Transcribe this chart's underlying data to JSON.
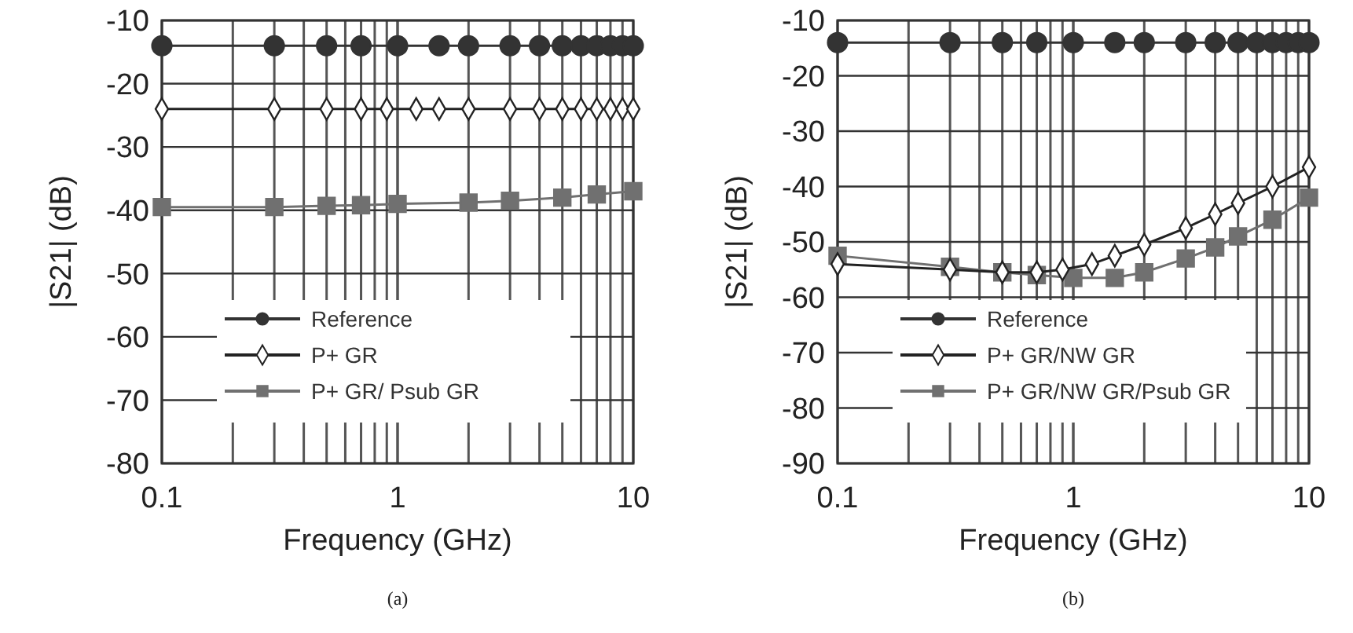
{
  "chart_data": [
    {
      "type": "line",
      "xlabel": "Frequency (GHz)",
      "ylabel": "|S21| (dB)",
      "log": "x",
      "xlim": [
        0.1,
        10
      ],
      "xticks": [
        0.1,
        1,
        10
      ],
      "ylim": [
        -80,
        -10
      ],
      "yticks": [
        -80,
        -70,
        -60,
        -50,
        -40,
        -30,
        -20,
        -10
      ],
      "grid": true,
      "legend": "bottom left",
      "annotations": [
        "(a)"
      ],
      "series": [
        {
          "name": "Reference",
          "color": "#333333",
          "marker": "circle",
          "x": [
            0.1,
            0.3,
            0.5,
            0.7,
            1,
            1.5,
            2,
            3,
            4,
            5,
            6,
            7,
            8,
            9,
            10
          ],
          "values": [
            -14,
            -14,
            -14,
            -14,
            -14,
            -14,
            -14,
            -14,
            -14,
            -14,
            -14,
            -14,
            -14,
            -14,
            -14
          ]
        },
        {
          "name": "P+ GR",
          "color": "#222222",
          "marker": "diamond",
          "x": [
            0.1,
            0.3,
            0.5,
            0.7,
            0.9,
            1.2,
            1.5,
            2,
            3,
            4,
            5,
            6,
            7,
            8,
            9,
            10
          ],
          "values": [
            -24,
            -24,
            -24,
            -24,
            -24,
            -24,
            -24,
            -24,
            -24,
            -24,
            -24,
            -24,
            -24,
            -24,
            -24,
            -24
          ]
        },
        {
          "name": "P+ GR/ Psub GR",
          "color": "#707070",
          "marker": "square",
          "x": [
            0.1,
            0.3,
            0.5,
            0.7,
            1,
            2,
            3,
            5,
            7,
            10
          ],
          "values": [
            -39.5,
            -39.5,
            -39.3,
            -39.2,
            -39,
            -38.8,
            -38.5,
            -38,
            -37.5,
            -37
          ]
        }
      ]
    },
    {
      "type": "line",
      "xlabel": "Frequency (GHz)",
      "ylabel": "|S21| (dB)",
      "log": "x",
      "xlim": [
        0.1,
        10
      ],
      "xticks": [
        0.1,
        1,
        10
      ],
      "ylim": [
        -90,
        -10
      ],
      "yticks": [
        -90,
        -80,
        -70,
        -60,
        -50,
        -40,
        -30,
        -20,
        -10
      ],
      "grid": true,
      "legend": "bottom left",
      "annotations": [
        "(b)"
      ],
      "series": [
        {
          "name": "Reference",
          "color": "#333333",
          "marker": "circle",
          "x": [
            0.1,
            0.3,
            0.5,
            0.7,
            1,
            1.5,
            2,
            3,
            4,
            5,
            6,
            7,
            8,
            9,
            10
          ],
          "values": [
            -14,
            -14,
            -14,
            -14,
            -14,
            -14,
            -14,
            -14,
            -14,
            -14,
            -14,
            -14,
            -14,
            -14,
            -14
          ]
        },
        {
          "name": "P+ GR/NW GR",
          "color": "#222222",
          "marker": "diamond",
          "x": [
            0.1,
            0.3,
            0.5,
            0.7,
            0.9,
            1.2,
            1.5,
            2,
            3,
            4,
            5,
            7,
            10
          ],
          "values": [
            -54,
            -55,
            -55.5,
            -55.5,
            -55,
            -54,
            -52.5,
            -50.5,
            -47.5,
            -45,
            -43,
            -40,
            -36.5
          ]
        },
        {
          "name": "P+ GR/NW GR/Psub GR",
          "color": "#707070",
          "marker": "square",
          "x": [
            0.1,
            0.3,
            0.5,
            0.7,
            1,
            1.5,
            2,
            3,
            4,
            5,
            7,
            10
          ],
          "values": [
            -52.5,
            -54.5,
            -55.5,
            -56,
            -56.5,
            -56.5,
            -55.5,
            -53,
            -51,
            -49,
            -46,
            -42
          ]
        }
      ]
    }
  ]
}
